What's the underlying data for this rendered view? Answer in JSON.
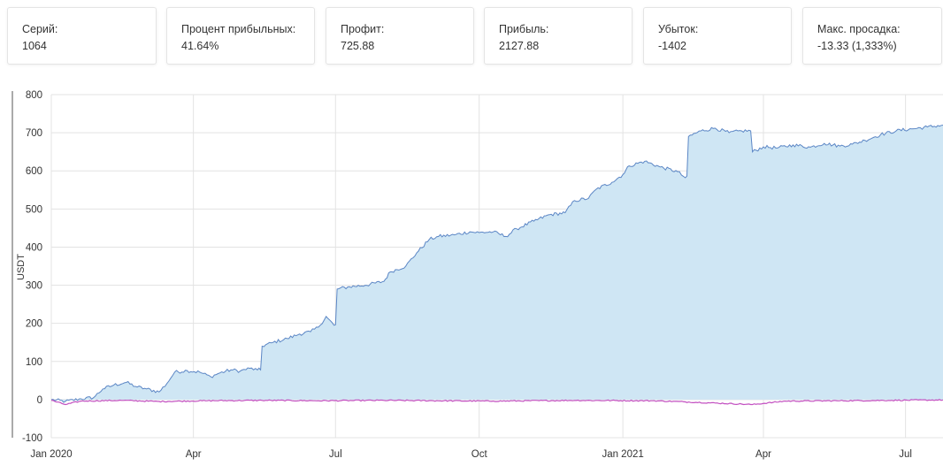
{
  "stats": [
    {
      "label": "Серий:",
      "value": "1064"
    },
    {
      "label": "Процент прибыльных:",
      "value": "41.64%"
    },
    {
      "label": "Профит:",
      "value": "725.88"
    },
    {
      "label": "Прибыль:",
      "value": "2127.88"
    },
    {
      "label": "Убыток:",
      "value": "-1402"
    },
    {
      "label": "Макс. просадка:",
      "value": "-13.33 (1,333%)"
    }
  ],
  "colors": {
    "area_fill": "#cfe6f4",
    "equity_line": "#5b86c5",
    "drawdown_line": "#c24fc0",
    "grid": "#e3e3e3"
  },
  "chart_data": {
    "type": "area",
    "ylabel": "USDT",
    "xlabel": "",
    "ylim": [
      -100,
      800
    ],
    "yticks": [
      -100,
      0,
      100,
      200,
      300,
      400,
      500,
      600,
      700,
      800
    ],
    "xlim": [
      "2020-01-01",
      "2021-07-25"
    ],
    "xticks": [
      {
        "date": "2020-01-01",
        "label": "Jan 2020"
      },
      {
        "date": "2020-04-01",
        "label": "Apr"
      },
      {
        "date": "2020-07-01",
        "label": "Jul"
      },
      {
        "date": "2020-10-01",
        "label": "Oct"
      },
      {
        "date": "2021-01-01",
        "label": "Jan 2021"
      },
      {
        "date": "2021-04-01",
        "label": "Apr"
      },
      {
        "date": "2021-07-01",
        "label": "Jul"
      }
    ],
    "grid": true,
    "series": [
      {
        "name": "",
        "type": "area",
        "points": [
          [
            "2020-01-01",
            0
          ],
          [
            "2020-01-10",
            -5
          ],
          [
            "2020-01-20",
            2
          ],
          [
            "2020-01-28",
            5
          ],
          [
            "2020-02-03",
            28
          ],
          [
            "2020-02-10",
            38
          ],
          [
            "2020-02-18",
            45
          ],
          [
            "2020-02-25",
            33
          ],
          [
            "2020-03-02",
            28
          ],
          [
            "2020-03-10",
            20
          ],
          [
            "2020-03-15",
            42
          ],
          [
            "2020-03-20",
            72
          ],
          [
            "2020-03-28",
            76
          ],
          [
            "2020-04-05",
            72
          ],
          [
            "2020-04-12",
            60
          ],
          [
            "2020-04-18",
            70
          ],
          [
            "2020-04-25",
            78
          ],
          [
            "2020-05-01",
            75
          ],
          [
            "2020-05-07",
            82
          ],
          [
            "2020-05-12",
            78
          ],
          [
            "2020-05-15",
            140
          ],
          [
            "2020-05-22",
            150
          ],
          [
            "2020-05-31",
            160
          ],
          [
            "2020-06-08",
            172
          ],
          [
            "2020-06-15",
            178
          ],
          [
            "2020-06-20",
            190
          ],
          [
            "2020-06-25",
            218
          ],
          [
            "2020-06-30",
            195
          ],
          [
            "2020-07-02",
            290
          ],
          [
            "2020-07-10",
            296
          ],
          [
            "2020-07-20",
            300
          ],
          [
            "2020-08-01",
            310
          ],
          [
            "2020-08-05",
            335
          ],
          [
            "2020-08-15",
            350
          ],
          [
            "2020-08-22",
            385
          ],
          [
            "2020-08-30",
            420
          ],
          [
            "2020-09-05",
            428
          ],
          [
            "2020-09-15",
            432
          ],
          [
            "2020-09-25",
            440
          ],
          [
            "2020-10-01",
            438
          ],
          [
            "2020-10-10",
            440
          ],
          [
            "2020-10-18",
            428
          ],
          [
            "2020-10-25",
            448
          ],
          [
            "2020-11-05",
            468
          ],
          [
            "2020-11-15",
            485
          ],
          [
            "2020-11-25",
            490
          ],
          [
            "2020-12-01",
            522
          ],
          [
            "2020-12-10",
            528
          ],
          [
            "2020-12-15",
            552
          ],
          [
            "2020-12-25",
            570
          ],
          [
            "2021-01-01",
            590
          ],
          [
            "2021-01-05",
            613
          ],
          [
            "2021-01-15",
            625
          ],
          [
            "2021-01-25",
            610
          ],
          [
            "2021-02-05",
            598
          ],
          [
            "2021-02-10",
            582
          ],
          [
            "2021-02-12",
            690
          ],
          [
            "2021-02-20",
            705
          ],
          [
            "2021-03-01",
            712
          ],
          [
            "2021-03-10",
            700
          ],
          [
            "2021-03-18",
            705
          ],
          [
            "2021-03-25",
            650
          ],
          [
            "2021-04-01",
            663
          ],
          [
            "2021-04-10",
            660
          ],
          [
            "2021-04-20",
            668
          ],
          [
            "2021-05-01",
            662
          ],
          [
            "2021-05-10",
            672
          ],
          [
            "2021-05-20",
            665
          ],
          [
            "2021-05-28",
            670
          ],
          [
            "2021-06-05",
            680
          ],
          [
            "2021-06-15",
            695
          ],
          [
            "2021-06-25",
            705
          ],
          [
            "2021-07-05",
            710
          ],
          [
            "2021-07-15",
            715
          ],
          [
            "2021-07-25",
            720
          ]
        ]
      },
      {
        "name": "",
        "type": "line",
        "points": [
          [
            "2020-01-01",
            -2
          ],
          [
            "2020-01-10",
            -13
          ],
          [
            "2020-01-20",
            -4
          ],
          [
            "2020-02-15",
            -2
          ],
          [
            "2020-03-10",
            -5
          ],
          [
            "2020-04-10",
            -3
          ],
          [
            "2020-05-15",
            -2
          ],
          [
            "2020-06-20",
            -3
          ],
          [
            "2020-08-01",
            -2
          ],
          [
            "2020-10-10",
            -4
          ],
          [
            "2020-12-01",
            -2
          ],
          [
            "2021-01-20",
            -3
          ],
          [
            "2021-02-10",
            -6
          ],
          [
            "2021-03-25",
            -13
          ],
          [
            "2021-04-15",
            -4
          ],
          [
            "2021-05-20",
            -3
          ],
          [
            "2021-06-20",
            -2
          ],
          [
            "2021-07-25",
            -1
          ]
        ]
      }
    ]
  }
}
